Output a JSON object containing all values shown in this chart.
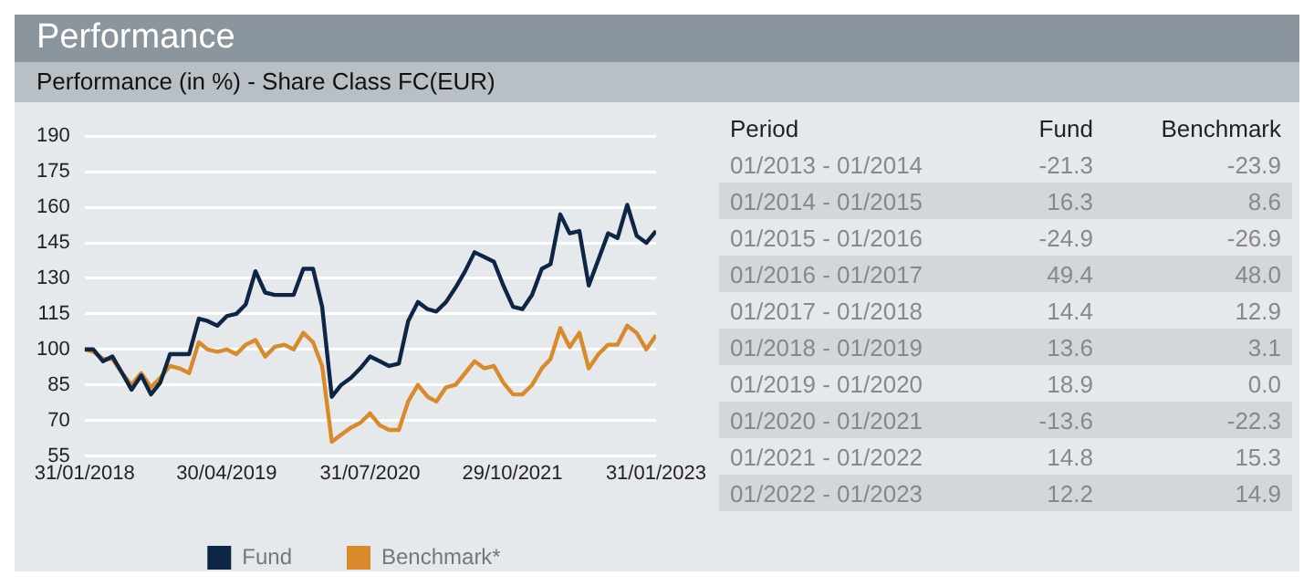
{
  "chart_data": [
    {
      "type": "line",
      "title": "Performance",
      "subtitle": "Performance (in %) - Share Class FC(EUR)",
      "x": [
        "2018-01-31",
        "2018-02-28",
        "2018-03-31",
        "2018-04-30",
        "2018-05-31",
        "2018-06-30",
        "2018-07-31",
        "2018-08-31",
        "2018-09-30",
        "2018-10-31",
        "2018-11-30",
        "2018-12-31",
        "2019-01-31",
        "2019-02-28",
        "2019-03-31",
        "2019-04-30",
        "2019-05-31",
        "2019-06-30",
        "2019-07-31",
        "2019-08-31",
        "2019-09-30",
        "2019-10-31",
        "2019-11-30",
        "2019-12-31",
        "2020-01-31",
        "2020-02-29",
        "2020-03-31",
        "2020-04-30",
        "2020-05-31",
        "2020-06-30",
        "2020-07-31",
        "2020-08-31",
        "2020-09-30",
        "2020-10-31",
        "2020-11-30",
        "2020-12-31",
        "2021-01-31",
        "2021-02-28",
        "2021-03-31",
        "2021-04-30",
        "2021-05-31",
        "2021-06-30",
        "2021-07-31",
        "2021-08-31",
        "2021-09-30",
        "2021-10-31",
        "2021-11-30",
        "2021-12-31",
        "2022-01-31",
        "2022-02-28",
        "2022-03-31",
        "2022-04-30",
        "2022-05-31",
        "2022-06-30",
        "2022-07-31",
        "2022-08-31",
        "2022-09-30",
        "2022-10-31",
        "2022-11-30",
        "2022-12-31",
        "2023-01-31"
      ],
      "series": [
        {
          "name": "Fund",
          "color": "#0d2646",
          "values": [
            100,
            100,
            95,
            97,
            90,
            83,
            89,
            81,
            86,
            98,
            98,
            98,
            113,
            112,
            110,
            114,
            115,
            119,
            133,
            124,
            123,
            123,
            123,
            134,
            134,
            118,
            80,
            85,
            88,
            92,
            97,
            95,
            93,
            94,
            112,
            120,
            117,
            116,
            120,
            126,
            133,
            141,
            139,
            137,
            127,
            118,
            117,
            123,
            134,
            136,
            157,
            149,
            150,
            127,
            138,
            149,
            147,
            161,
            148,
            145,
            150
          ]
        },
        {
          "name": "Benchmark*",
          "color": "#d98a2b",
          "values": [
            100,
            99,
            96,
            96,
            90,
            85,
            90,
            84,
            88,
            93,
            92,
            90,
            103,
            100,
            99,
            100,
            98,
            102,
            104,
            97,
            101,
            102,
            100,
            107,
            103,
            93,
            61,
            64,
            67,
            69,
            73,
            68,
            66,
            66,
            78,
            85,
            80,
            78,
            84,
            85,
            90,
            95,
            92,
            93,
            86,
            81,
            81,
            85,
            92,
            96,
            109,
            101,
            107,
            92,
            98,
            102,
            102,
            110,
            107,
            100,
            106
          ]
        }
      ],
      "xlim": [
        "2018-01-31",
        "2023-01-31"
      ],
      "xticks": [
        {
          "value": "2018-01-31",
          "label": "31/01/2018"
        },
        {
          "value": "2019-04-30",
          "label": "30/04/2019"
        },
        {
          "value": "2020-07-31",
          "label": "31/07/2020"
        },
        {
          "value": "2021-10-29",
          "label": "29/10/2021"
        },
        {
          "value": "2023-01-31",
          "label": "31/01/2023"
        }
      ],
      "ylim": [
        55,
        190
      ],
      "yticks": [
        55,
        70,
        85,
        100,
        115,
        130,
        145,
        160,
        175,
        190
      ],
      "grid": "y",
      "legend": "bottom",
      "marker": "none",
      "line_style": "solid"
    },
    {
      "type": "other",
      "xlabel": "Period",
      "categories": [
        "01/2013 - 01/2014",
        "01/2014 - 01/2015",
        "01/2015 - 01/2016",
        "01/2016 - 01/2017",
        "01/2017 - 01/2018",
        "01/2018 - 01/2019",
        "01/2019 - 01/2020",
        "01/2020 - 01/2021",
        "01/2021 - 01/2022",
        "01/2022 - 01/2023"
      ],
      "series": [
        {
          "name": "Fund",
          "values": [
            -21.3,
            16.3,
            -24.9,
            49.4,
            14.4,
            13.6,
            18.9,
            -13.6,
            14.8,
            12.2
          ],
          "value_labels": [
            "-21.3",
            "16.3",
            "-24.9",
            "49.4",
            "14.4",
            "13.6",
            "18.9",
            "-13.6",
            "14.8",
            "12.2"
          ]
        },
        {
          "name": "Benchmark",
          "values": [
            -23.9,
            8.6,
            -26.9,
            48.0,
            12.9,
            3.1,
            0.0,
            -22.3,
            15.3,
            14.9
          ],
          "value_labels": [
            "-23.9",
            "8.6",
            "-26.9",
            "48.0",
            "12.9",
            "3.1",
            "0.0",
            "-22.3",
            "15.3",
            "14.9"
          ]
        }
      ],
      "data_labels": true
    }
  ]
}
